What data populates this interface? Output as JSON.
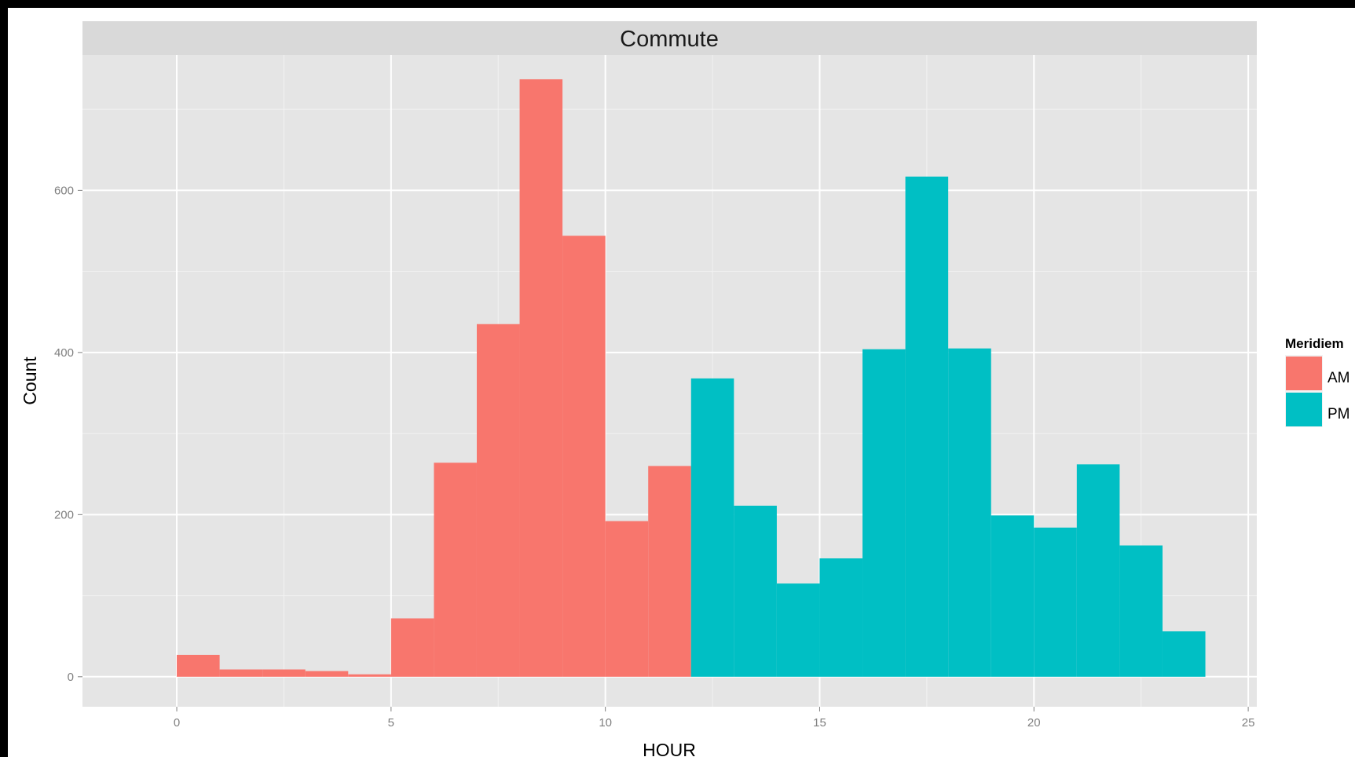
{
  "chart_data": {
    "type": "bar",
    "title": "Commute",
    "xlabel": "HOUR",
    "ylabel": "Count",
    "xlim": [
      -2.2,
      25.2
    ],
    "ylim": [
      -37,
      767
    ],
    "x_ticks": [
      0,
      5,
      10,
      15,
      20,
      25
    ],
    "y_ticks": [
      0,
      200,
      400,
      600
    ],
    "grid": true,
    "legend": {
      "title": "Meridiem",
      "position": "right"
    },
    "bin_width": 1,
    "series": [
      {
        "name": "AM",
        "color": "#F8766D",
        "bins": [
          {
            "x0": 0,
            "count": 27
          },
          {
            "x0": 1,
            "count": 9
          },
          {
            "x0": 2,
            "count": 9
          },
          {
            "x0": 3,
            "count": 7
          },
          {
            "x0": 4,
            "count": 3
          },
          {
            "x0": 5,
            "count": 72
          },
          {
            "x0": 6,
            "count": 264
          },
          {
            "x0": 7,
            "count": 435
          },
          {
            "x0": 8,
            "count": 737
          },
          {
            "x0": 9,
            "count": 544
          },
          {
            "x0": 10,
            "count": 192
          },
          {
            "x0": 11,
            "count": 260
          }
        ]
      },
      {
        "name": "PM",
        "color": "#00BFC4",
        "bins": [
          {
            "x0": 12,
            "count": 368
          },
          {
            "x0": 13,
            "count": 211
          },
          {
            "x0": 14,
            "count": 115
          },
          {
            "x0": 15,
            "count": 146
          },
          {
            "x0": 16,
            "count": 404
          },
          {
            "x0": 17,
            "count": 617
          },
          {
            "x0": 18,
            "count": 405
          },
          {
            "x0": 19,
            "count": 199
          },
          {
            "x0": 20,
            "count": 184
          },
          {
            "x0": 21,
            "count": 262
          },
          {
            "x0": 22,
            "count": 162
          },
          {
            "x0": 23,
            "count": 56
          }
        ]
      }
    ]
  }
}
